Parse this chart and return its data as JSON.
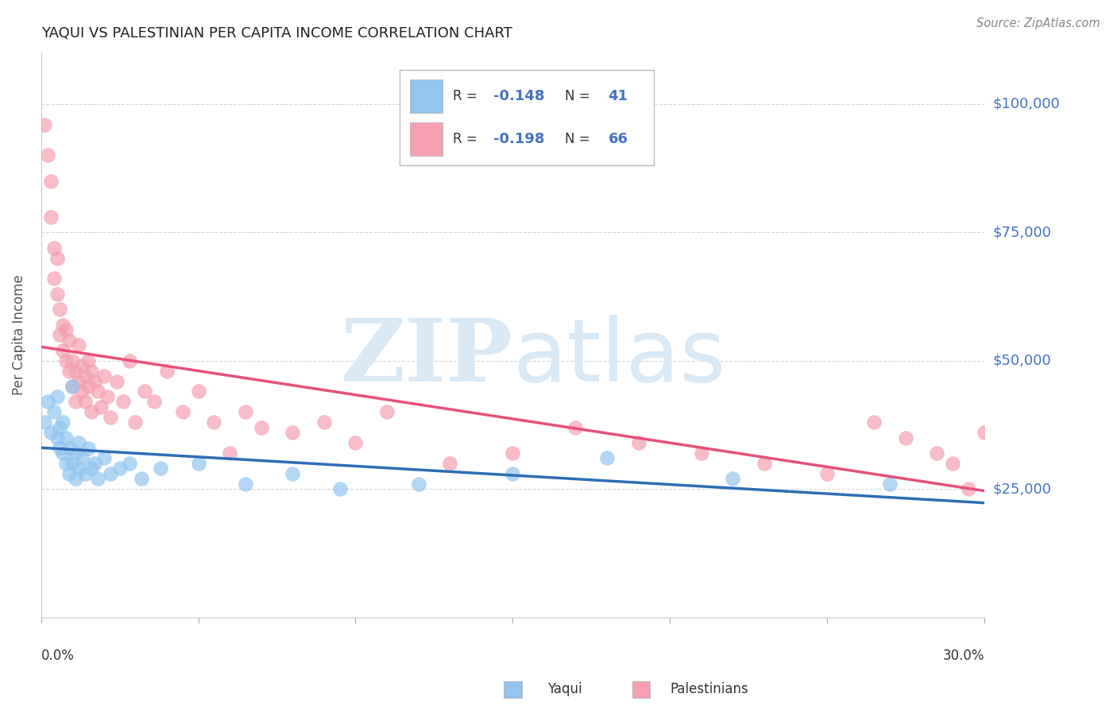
{
  "title": "YAQUI VS PALESTINIAN PER CAPITA INCOME CORRELATION CHART",
  "source": "Source: ZipAtlas.com",
  "ylabel": "Per Capita Income",
  "yticks": [
    0,
    25000,
    50000,
    75000,
    100000
  ],
  "ytick_labels": [
    "",
    "$25,000",
    "$50,000",
    "$75,000",
    "$100,000"
  ],
  "ylim": [
    0,
    110000
  ],
  "xlim": [
    0.0,
    0.3
  ],
  "yaqui_R": -0.148,
  "yaqui_N": 41,
  "palestinian_R": -0.198,
  "palestinian_N": 66,
  "yaqui_color": "#92C5F0",
  "palestinian_color": "#F4A0B0",
  "yaqui_line_color": "#2E6DB4",
  "palestinian_line_color": "#E8507A",
  "background_color": "#FFFFFF",
  "watermark_zip": "ZIP",
  "watermark_atlas": "atlas",
  "legend_text_color": "#4472C4",
  "yaqui_x": [
    0.001,
    0.002,
    0.003,
    0.004,
    0.005,
    0.005,
    0.006,
    0.006,
    0.007,
    0.007,
    0.008,
    0.008,
    0.009,
    0.009,
    0.01,
    0.01,
    0.011,
    0.011,
    0.012,
    0.012,
    0.013,
    0.014,
    0.015,
    0.016,
    0.017,
    0.018,
    0.02,
    0.022,
    0.025,
    0.028,
    0.032,
    0.038,
    0.05,
    0.065,
    0.08,
    0.095,
    0.12,
    0.15,
    0.18,
    0.22,
    0.27
  ],
  "yaqui_y": [
    38000,
    42000,
    36000,
    40000,
    35000,
    43000,
    37000,
    33000,
    38000,
    32000,
    35000,
    30000,
    33000,
    28000,
    45000,
    30000,
    32000,
    27000,
    34000,
    29000,
    31000,
    28000,
    33000,
    29000,
    30000,
    27000,
    31000,
    28000,
    29000,
    30000,
    27000,
    29000,
    30000,
    26000,
    28000,
    25000,
    26000,
    28000,
    31000,
    27000,
    26000
  ],
  "palestinian_x": [
    0.001,
    0.002,
    0.003,
    0.003,
    0.004,
    0.004,
    0.005,
    0.005,
    0.006,
    0.006,
    0.007,
    0.007,
    0.008,
    0.008,
    0.009,
    0.009,
    0.01,
    0.01,
    0.011,
    0.011,
    0.012,
    0.012,
    0.013,
    0.013,
    0.014,
    0.014,
    0.015,
    0.015,
    0.016,
    0.016,
    0.017,
    0.018,
    0.019,
    0.02,
    0.021,
    0.022,
    0.024,
    0.026,
    0.028,
    0.03,
    0.033,
    0.036,
    0.04,
    0.045,
    0.05,
    0.055,
    0.06,
    0.065,
    0.07,
    0.08,
    0.09,
    0.1,
    0.11,
    0.13,
    0.15,
    0.17,
    0.19,
    0.21,
    0.23,
    0.25,
    0.265,
    0.275,
    0.285,
    0.29,
    0.295,
    0.3
  ],
  "palestinian_y": [
    96000,
    90000,
    85000,
    78000,
    72000,
    66000,
    63000,
    70000,
    60000,
    55000,
    57000,
    52000,
    50000,
    56000,
    48000,
    54000,
    45000,
    50000,
    48000,
    42000,
    46000,
    53000,
    44000,
    49000,
    47000,
    42000,
    50000,
    45000,
    48000,
    40000,
    46000,
    44000,
    41000,
    47000,
    43000,
    39000,
    46000,
    42000,
    50000,
    38000,
    44000,
    42000,
    48000,
    40000,
    44000,
    38000,
    32000,
    40000,
    37000,
    36000,
    38000,
    34000,
    40000,
    30000,
    32000,
    37000,
    34000,
    32000,
    30000,
    28000,
    38000,
    35000,
    32000,
    30000,
    25000,
    36000
  ]
}
